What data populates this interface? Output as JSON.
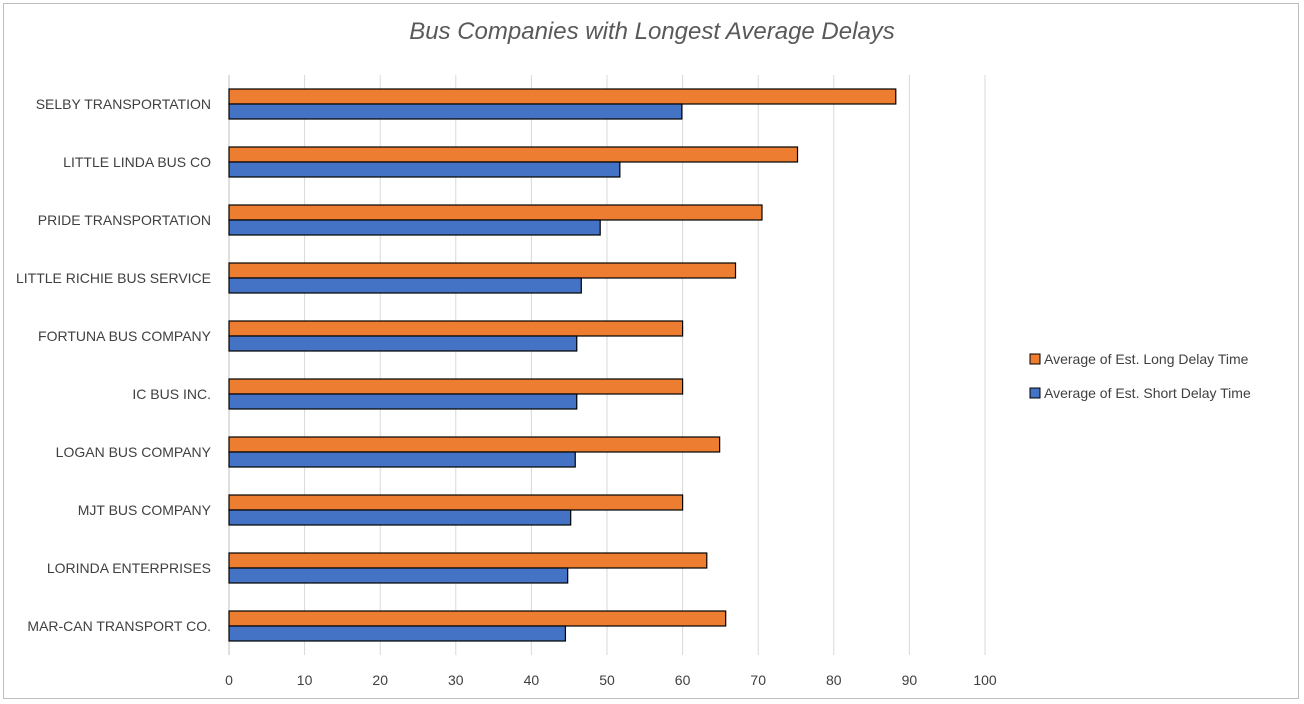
{
  "chart_data": {
    "type": "bar",
    "orientation": "horizontal",
    "title": "Bus Companies with Longest Average Delays",
    "categories": [
      "SELBY TRANSPORTATION",
      "LITTLE LINDA BUS CO",
      "PRIDE TRANSPORTATION",
      "LITTLE RICHIE BUS SERVICE",
      "FORTUNA BUS COMPANY",
      "IC BUS INC.",
      "LOGAN BUS COMPANY",
      "MJT BUS COMPANY",
      "LORINDA ENTERPRISES",
      "MAR-CAN TRANSPORT CO."
    ],
    "series": [
      {
        "name": "Average of Est. Long Delay Time",
        "color": "#ed7d31",
        "values": [
          88.2,
          75.2,
          70.5,
          67.0,
          60.0,
          60.0,
          64.9,
          60.0,
          63.2,
          65.7
        ]
      },
      {
        "name": "Average of Est. Short Delay Time",
        "color": "#4472c4",
        "values": [
          59.9,
          51.7,
          49.1,
          46.6,
          46.0,
          46.0,
          45.8,
          45.2,
          44.8,
          44.5
        ]
      }
    ],
    "xlim": [
      0,
      100
    ],
    "xticks": [
      0,
      10,
      20,
      30,
      40,
      50,
      60,
      70,
      80,
      90,
      100
    ],
    "xlabel": "",
    "ylabel": "",
    "grid": true,
    "legend_position": "right"
  }
}
